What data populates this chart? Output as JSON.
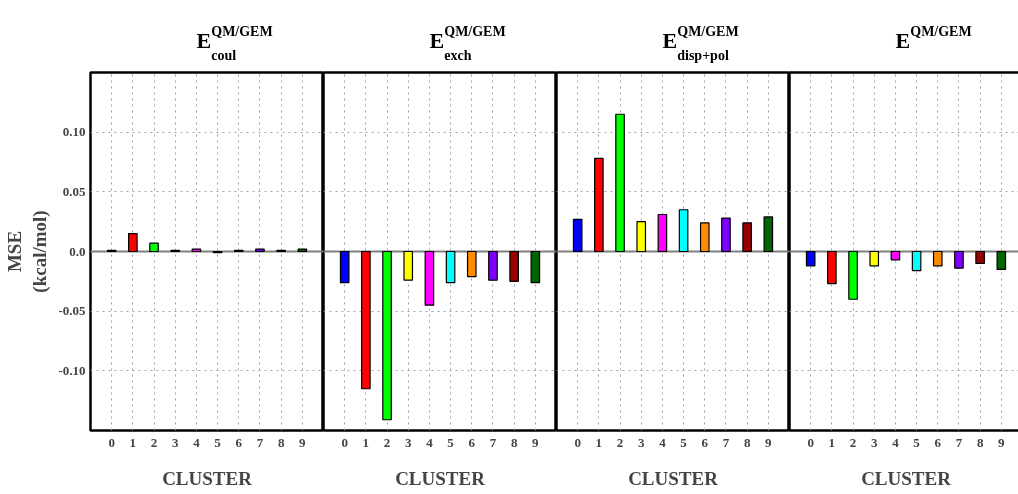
{
  "chart_data": [
    {
      "type": "bar",
      "title": "E$^{QM/GEM}$$_{coul}$",
      "xlabel": "CLUSTER",
      "ylabel": "MSE (kcal/mol)",
      "categories": [
        "0",
        "1",
        "2",
        "3",
        "4",
        "5",
        "6",
        "7",
        "8",
        "9"
      ],
      "values": [
        0.001,
        0.015,
        0.007,
        0.001,
        0.002,
        -0.001,
        0.001,
        0.002,
        0.001,
        0.002
      ],
      "colors": [
        "#0000ff",
        "#ff0000",
        "#00ff00",
        "#ffff00",
        "#ff00ff",
        "#00ffff",
        "#ff8c00",
        "#7f00ff",
        "#990000",
        "#006400"
      ],
      "ylim": [
        -0.15,
        0.15
      ],
      "yticks": [
        {
          "value": -0.1,
          "label": "-0.10"
        },
        {
          "value": -0.05,
          "label": "-0.05"
        },
        {
          "value": 0,
          "label": "0.0"
        },
        {
          "value": 0.05,
          "label": "0.05"
        },
        {
          "value": 0.1,
          "label": "0.10"
        }
      ],
      "grid": true,
      "ref_lines": [
        {
          "axis": "y",
          "value": 0,
          "color": "#808080"
        }
      ]
    },
    {
      "type": "bar",
      "title": "E$^{QM/GEM}$$_{exch}$",
      "xlabel": "CLUSTER",
      "categories": [
        "0",
        "1",
        "2",
        "3",
        "4",
        "5",
        "6",
        "7",
        "8",
        "9"
      ],
      "values": [
        -0.026,
        -0.115,
        -0.141,
        -0.024,
        -0.045,
        -0.026,
        -0.021,
        -0.024,
        -0.025,
        -0.026
      ],
      "colors": [
        "#0000ff",
        "#ff0000",
        "#00ff00",
        "#ffff00",
        "#ff00ff",
        "#00ffff",
        "#ff8c00",
        "#7f00ff",
        "#990000",
        "#006400"
      ],
      "ylim": [
        -0.15,
        0.15
      ],
      "yticks": [
        {
          "value": -0.1,
          "label": null
        },
        {
          "value": -0.05,
          "label": null
        },
        {
          "value": 0,
          "label": null
        },
        {
          "value": 0.05,
          "label": null
        },
        {
          "value": 0.1,
          "label": null
        }
      ],
      "grid": true,
      "tick_labels": "x",
      "ref_lines": [
        {
          "axis": "y",
          "value": 0,
          "color": "#808080"
        }
      ]
    },
    {
      "type": "bar",
      "title": "E$^{QM/GEM}$$_{disp+pol}$",
      "xlabel": "CLUSTER",
      "categories": [
        "0",
        "1",
        "2",
        "3",
        "4",
        "5",
        "6",
        "7",
        "8",
        "9"
      ],
      "values": [
        0.027,
        0.078,
        0.115,
        0.025,
        0.031,
        0.035,
        0.024,
        0.028,
        0.024,
        0.029
      ],
      "colors": [
        "#0000ff",
        "#ff0000",
        "#00ff00",
        "#ffff00",
        "#ff00ff",
        "#00ffff",
        "#ff8c00",
        "#7f00ff",
        "#990000",
        "#006400"
      ],
      "ylim": [
        -0.15,
        0.15
      ],
      "yticks": [
        {
          "value": -0.1,
          "label": null
        },
        {
          "value": -0.05,
          "label": null
        },
        {
          "value": 0,
          "label": null
        },
        {
          "value": 0.05,
          "label": null
        },
        {
          "value": 0.1,
          "label": null
        }
      ],
      "grid": true,
      "tick_labels": "x",
      "ref_lines": [
        {
          "axis": "y",
          "value": 0,
          "color": "#808080"
        }
      ]
    },
    {
      "type": "bar",
      "title": "E$^{QM/GEM}$",
      "xlabel": "CLUSTER",
      "categories": [
        "0",
        "1",
        "2",
        "3",
        "4",
        "5",
        "6",
        "7",
        "8",
        "9"
      ],
      "values": [
        -0.012,
        -0.027,
        -0.04,
        -0.012,
        -0.007,
        -0.016,
        -0.012,
        -0.014,
        -0.01,
        -0.015
      ],
      "colors": [
        "#0000ff",
        "#ff0000",
        "#00ff00",
        "#ffff00",
        "#ff00ff",
        "#00ffff",
        "#ff8c00",
        "#7f00ff",
        "#990000",
        "#006400"
      ],
      "ylim": [
        -0.15,
        0.15
      ],
      "yticks": [
        {
          "value": -0.1,
          "label": null
        },
        {
          "value": -0.05,
          "label": null
        },
        {
          "value": 0,
          "label": null
        },
        {
          "value": 0.05,
          "label": null
        },
        {
          "value": 0.1,
          "label": null
        }
      ],
      "grid": true,
      "tick_labels": "x",
      "ref_lines": [
        {
          "axis": "y",
          "value": 0,
          "color": "#808080"
        }
      ]
    }
  ]
}
